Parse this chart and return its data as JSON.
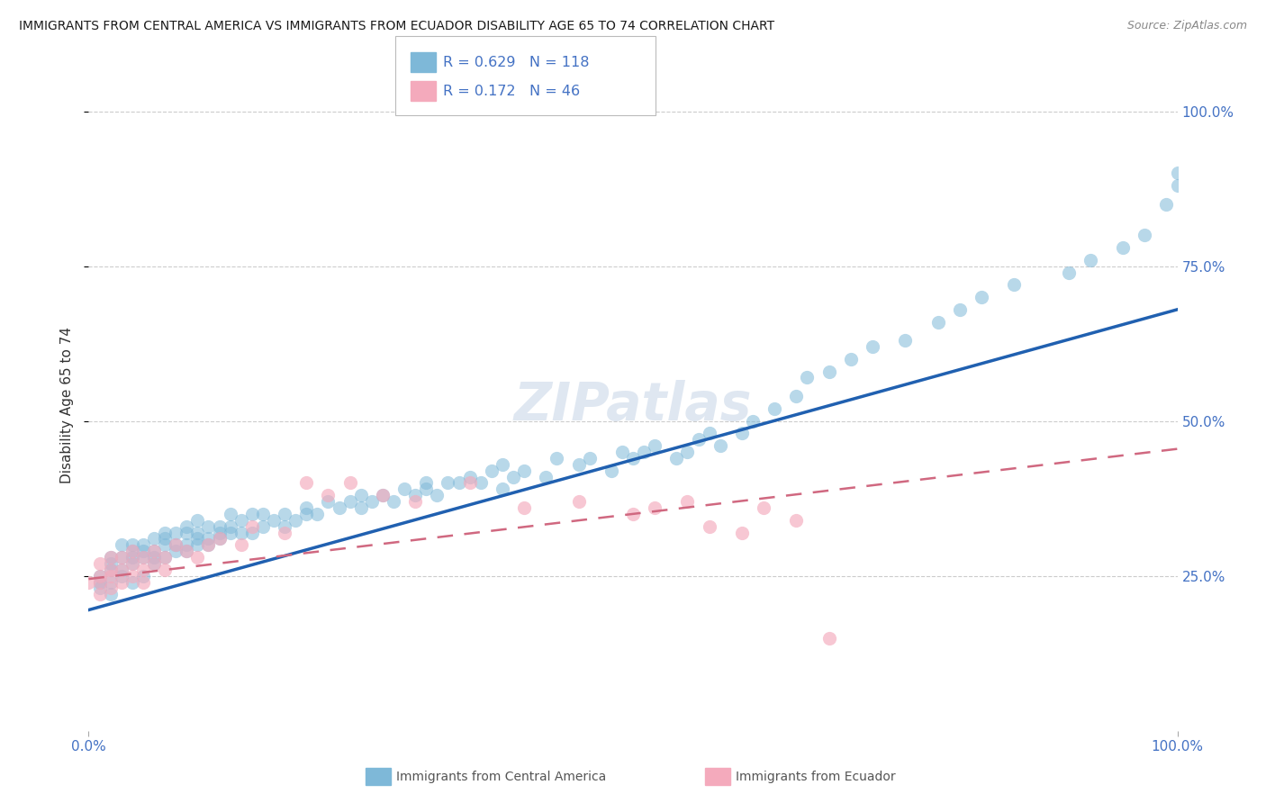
{
  "title": "IMMIGRANTS FROM CENTRAL AMERICA VS IMMIGRANTS FROM ECUADOR DISABILITY AGE 65 TO 74 CORRELATION CHART",
  "source": "Source: ZipAtlas.com",
  "ylabel": "Disability Age 65 to 74",
  "legend1_label": "Immigrants from Central America",
  "legend2_label": "Immigrants from Ecuador",
  "R1": 0.629,
  "N1": 118,
  "R2": 0.172,
  "N2": 46,
  "color1": "#7EB8D8",
  "color2": "#F4AABC",
  "line1_color": "#2060B0",
  "line2_color": "#D06880",
  "watermark": "ZIPatlas",
  "xmin": 0.0,
  "xmax": 1.0,
  "ymin": 0.0,
  "ymax": 1.05,
  "ytick_positions": [
    0.25,
    0.5,
    0.75,
    1.0
  ],
  "ytick_labels": [
    "25.0%",
    "50.0%",
    "75.0%",
    "100.0%"
  ],
  "xtick_left": "0.0%",
  "xtick_right": "100.0%",
  "axis_label_color": "#4472C4",
  "grid_color": "#cccccc",
  "title_color": "#1a1a1a",
  "source_color": "#888888",
  "blue_line_x0": 0.0,
  "blue_line_y0": 0.195,
  "blue_line_x1": 1.0,
  "blue_line_y1": 0.68,
  "pink_line_x0": 0.0,
  "pink_line_y0": 0.245,
  "pink_line_x1": 1.0,
  "pink_line_y1": 0.455,
  "blue_x": [
    0.01,
    0.01,
    0.01,
    0.02,
    0.02,
    0.02,
    0.02,
    0.02,
    0.03,
    0.03,
    0.03,
    0.03,
    0.04,
    0.04,
    0.04,
    0.04,
    0.04,
    0.05,
    0.05,
    0.05,
    0.05,
    0.06,
    0.06,
    0.06,
    0.06,
    0.07,
    0.07,
    0.07,
    0.07,
    0.08,
    0.08,
    0.08,
    0.09,
    0.09,
    0.09,
    0.09,
    0.1,
    0.1,
    0.1,
    0.1,
    0.11,
    0.11,
    0.11,
    0.12,
    0.12,
    0.12,
    0.13,
    0.13,
    0.13,
    0.14,
    0.14,
    0.15,
    0.15,
    0.16,
    0.16,
    0.17,
    0.18,
    0.18,
    0.19,
    0.2,
    0.2,
    0.21,
    0.22,
    0.23,
    0.24,
    0.25,
    0.25,
    0.26,
    0.27,
    0.28,
    0.29,
    0.3,
    0.31,
    0.31,
    0.32,
    0.33,
    0.34,
    0.35,
    0.36,
    0.37,
    0.38,
    0.38,
    0.39,
    0.4,
    0.42,
    0.43,
    0.45,
    0.46,
    0.48,
    0.49,
    0.5,
    0.51,
    0.52,
    0.54,
    0.55,
    0.56,
    0.57,
    0.58,
    0.6,
    0.61,
    0.63,
    0.65,
    0.66,
    0.68,
    0.7,
    0.72,
    0.75,
    0.78,
    0.8,
    0.82,
    0.85,
    0.9,
    0.92,
    0.95,
    0.97,
    0.99,
    1.0,
    1.0
  ],
  "blue_y": [
    0.23,
    0.24,
    0.25,
    0.24,
    0.26,
    0.27,
    0.28,
    0.22,
    0.26,
    0.28,
    0.3,
    0.25,
    0.27,
    0.29,
    0.3,
    0.24,
    0.28,
    0.28,
    0.29,
    0.3,
    0.25,
    0.28,
    0.29,
    0.31,
    0.27,
    0.28,
    0.3,
    0.31,
    0.32,
    0.29,
    0.3,
    0.32,
    0.29,
    0.3,
    0.32,
    0.33,
    0.3,
    0.31,
    0.32,
    0.34,
    0.3,
    0.31,
    0.33,
    0.31,
    0.32,
    0.33,
    0.32,
    0.33,
    0.35,
    0.32,
    0.34,
    0.32,
    0.35,
    0.33,
    0.35,
    0.34,
    0.33,
    0.35,
    0.34,
    0.35,
    0.36,
    0.35,
    0.37,
    0.36,
    0.37,
    0.36,
    0.38,
    0.37,
    0.38,
    0.37,
    0.39,
    0.38,
    0.39,
    0.4,
    0.38,
    0.4,
    0.4,
    0.41,
    0.4,
    0.42,
    0.39,
    0.43,
    0.41,
    0.42,
    0.41,
    0.44,
    0.43,
    0.44,
    0.42,
    0.45,
    0.44,
    0.45,
    0.46,
    0.44,
    0.45,
    0.47,
    0.48,
    0.46,
    0.48,
    0.5,
    0.52,
    0.54,
    0.57,
    0.58,
    0.6,
    0.62,
    0.63,
    0.66,
    0.68,
    0.7,
    0.72,
    0.74,
    0.76,
    0.78,
    0.8,
    0.85,
    0.88,
    0.9
  ],
  "pink_x": [
    0.0,
    0.01,
    0.01,
    0.01,
    0.01,
    0.02,
    0.02,
    0.02,
    0.02,
    0.03,
    0.03,
    0.03,
    0.04,
    0.04,
    0.04,
    0.05,
    0.05,
    0.05,
    0.06,
    0.06,
    0.07,
    0.07,
    0.08,
    0.09,
    0.1,
    0.11,
    0.12,
    0.14,
    0.15,
    0.18,
    0.2,
    0.22,
    0.24,
    0.27,
    0.3,
    0.35,
    0.4,
    0.45,
    0.5,
    0.52,
    0.55,
    0.57,
    0.6,
    0.62,
    0.65,
    0.68
  ],
  "pink_y": [
    0.24,
    0.22,
    0.24,
    0.25,
    0.27,
    0.23,
    0.25,
    0.26,
    0.28,
    0.24,
    0.26,
    0.28,
    0.25,
    0.27,
    0.29,
    0.24,
    0.26,
    0.28,
    0.27,
    0.29,
    0.26,
    0.28,
    0.3,
    0.29,
    0.28,
    0.3,
    0.31,
    0.3,
    0.33,
    0.32,
    0.4,
    0.38,
    0.4,
    0.38,
    0.37,
    0.4,
    0.36,
    0.37,
    0.35,
    0.36,
    0.37,
    0.33,
    0.32,
    0.36,
    0.34,
    0.15
  ]
}
